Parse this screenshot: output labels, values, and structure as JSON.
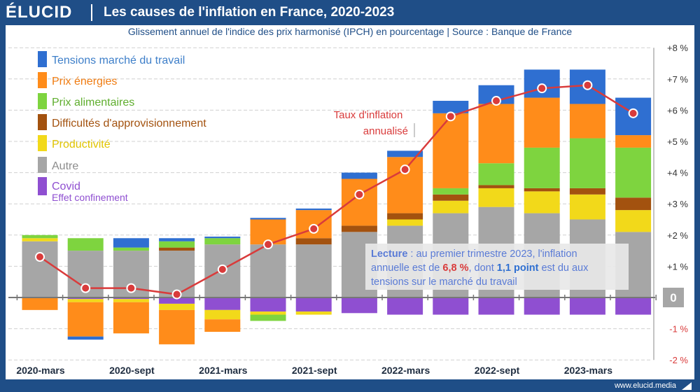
{
  "header": {
    "logo": "ÉLUCID",
    "title": "Les causes de l'inflation en France, 2020-2023"
  },
  "subtitle": "Glissement annuel de l'indice des prix harmonisé (IPCH) en pourcentage  |  Source : Banque de France",
  "footer": {
    "url": "www.elucid.media"
  },
  "legend": [
    {
      "name": "Tensions marché du travail",
      "color": "#2f6fd1",
      "text_color": "#3e7fc9"
    },
    {
      "name": "Prix énergies",
      "color": "#ff8c1a",
      "text_color": "#f07c12"
    },
    {
      "name": "Prix alimentaires",
      "color": "#7ed43f",
      "text_color": "#5fae2e"
    },
    {
      "name": "Difficultés d'approvisionnement",
      "color": "#a3520f",
      "text_color": "#a3520f"
    },
    {
      "name": "Productivité",
      "color": "#f2d91a",
      "text_color": "#e0c400"
    },
    {
      "name": "Autre",
      "color": "#a6a6a6",
      "text_color": "#8c8c8c"
    },
    {
      "name": "Covid",
      "sublabel": "Effet confinement",
      "color": "#8f4fd1",
      "text_color": "#8f4fd1"
    }
  ],
  "line_label": [
    "Taux d'inflation",
    "annualisé"
  ],
  "annotation": {
    "prefix": "Lecture",
    "t1": " : au premier trimestre 2023, l'inflation",
    "t2": "annuelle est de ",
    "v1": "6,8 %",
    "t3": ", dont ",
    "v2": "1,1 point",
    "t4": " est du aux",
    "t5": "tensions sur le marché du travail"
  },
  "chart_data": {
    "type": "bar",
    "stacked": true,
    "ylim": [
      -2,
      8
    ],
    "y_ticks": [
      {
        "v": 8,
        "label": "+8 %"
      },
      {
        "v": 7,
        "label": "+7 %"
      },
      {
        "v": 6,
        "label": "+6 %"
      },
      {
        "v": 5,
        "label": "+5 %"
      },
      {
        "v": 4,
        "label": "+4 %"
      },
      {
        "v": 3,
        "label": "+3 %"
      },
      {
        "v": 2,
        "label": "+2 %"
      },
      {
        "v": 1,
        "label": "+1 %"
      },
      {
        "v": 0,
        "label": "0"
      },
      {
        "v": -1,
        "label": "-1 %"
      },
      {
        "v": -2,
        "label": "-2 %"
      }
    ],
    "x_tick_labels": [
      "2020-mars",
      "2020-sept",
      "2021-mars",
      "2021-sept",
      "2022-mars",
      "2022-sept",
      "2023-mars"
    ],
    "n_bars": 14,
    "x_tick_every": 2,
    "series": [
      {
        "name": "Covid",
        "color": "#8f4fd1",
        "values": [
          0,
          -0.05,
          -0.05,
          -0.2,
          -0.4,
          -0.45,
          -0.45,
          -0.5,
          -0.55,
          -0.55,
          -0.55,
          -0.55,
          -0.55,
          -0.55
        ]
      },
      {
        "name": "Autre",
        "color": "#a6a6a6",
        "values": [
          1.8,
          1.5,
          1.5,
          1.5,
          1.7,
          1.7,
          1.7,
          2.1,
          2.3,
          2.7,
          2.9,
          2.7,
          2.5,
          2.1
        ]
      },
      {
        "name": "Productivité",
        "color": "#f2d91a",
        "values": [
          0.1,
          -0.1,
          -0.1,
          -0.2,
          -0.3,
          -0.1,
          -0.1,
          0,
          0.2,
          0.4,
          0.6,
          0.7,
          0.8,
          0.7
        ]
      },
      {
        "name": "Difficultés d'approvisionnement",
        "color": "#a3520f",
        "values": [
          0,
          0,
          0,
          0.1,
          0,
          0,
          0.2,
          0.2,
          0.2,
          0.2,
          0.1,
          0.1,
          0.2,
          0.4
        ]
      },
      {
        "name": "Prix alimentaires",
        "color": "#7ed43f",
        "values": [
          0.1,
          0.4,
          0.1,
          0.2,
          0.2,
          -0.2,
          0,
          0,
          0,
          0.2,
          0.7,
          1.3,
          1.6,
          1.6
        ]
      },
      {
        "name": "Prix énergies",
        "color": "#ff8c1a",
        "values": [
          -0.4,
          -1.1,
          -1.0,
          -1.1,
          -0.4,
          0.8,
          0.9,
          1.5,
          1.8,
          2.4,
          1.9,
          1.6,
          1.1,
          0.4
        ]
      },
      {
        "name": "Tensions marché du travail",
        "color": "#2f6fd1",
        "values": [
          0,
          -0.1,
          0.3,
          0.1,
          0.05,
          0.05,
          0.05,
          0.2,
          0.2,
          0.4,
          0.6,
          0.9,
          1.1,
          1.2
        ]
      }
    ],
    "line": {
      "name": "Taux d'inflation annualisé",
      "color": "#d93b3b",
      "values": [
        1.3,
        0.3,
        0.3,
        0.1,
        0.9,
        1.7,
        2.2,
        3.3,
        4.1,
        5.8,
        6.3,
        6.7,
        6.8,
        5.9
      ]
    }
  }
}
